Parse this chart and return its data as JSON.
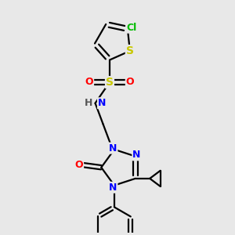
{
  "bg_color": "#e8e8e8",
  "bond_color": "#000000",
  "bond_width": 1.6,
  "atom_colors": {
    "S_thiophene": "#c8c800",
    "S_sulfonyl": "#c8c800",
    "Cl": "#00bb00",
    "N": "#0000ff",
    "O": "#ff0000",
    "H": "#555555",
    "C": "#000000"
  },
  "font_size": 9,
  "fig_size": [
    3.0,
    3.0
  ],
  "dpi": 100
}
